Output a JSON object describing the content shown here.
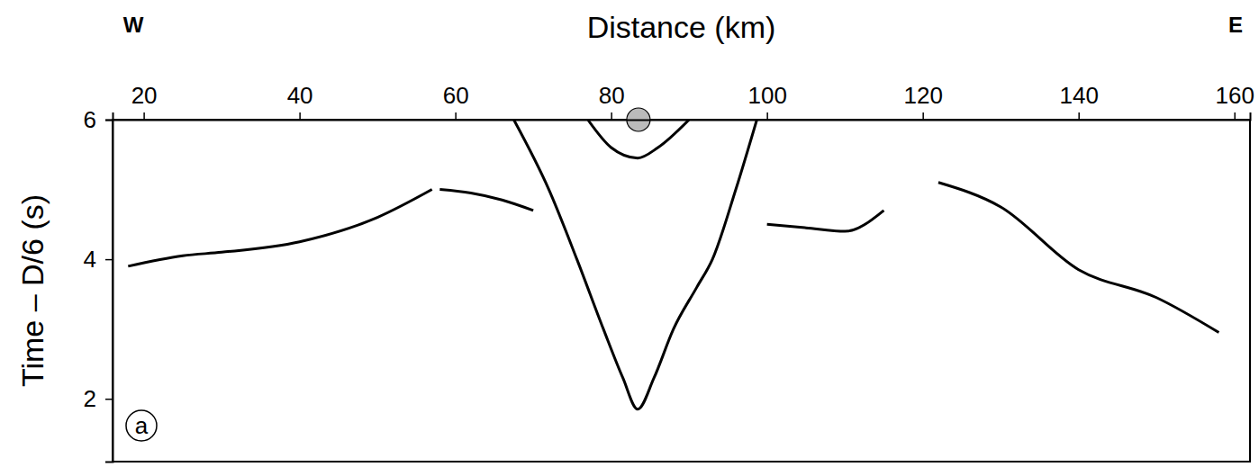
{
  "chart_data": {
    "type": "line",
    "title": "Distance (km)",
    "y_label": "Time – D/6 (s)",
    "direction_labels": [
      "W",
      "E"
    ],
    "panel_label": "a",
    "xlim": [
      16,
      162
    ],
    "xticks": [
      20,
      40,
      60,
      80,
      100,
      120,
      140,
      160
    ],
    "ylim": [
      1.1,
      6
    ],
    "yticks": [
      2,
      4,
      6
    ],
    "grid": false,
    "series": [
      {
        "color": "#000000",
        "x": [
          18,
          25,
          30,
          40,
          50,
          57
        ],
        "values": [
          3.9,
          4.05,
          4.1,
          4.25,
          4.6,
          5.0
        ]
      },
      {
        "color": "#000000",
        "x": [
          58,
          62,
          66,
          70
        ],
        "values": [
          5.0,
          4.95,
          4.85,
          4.7
        ]
      },
      {
        "color": "#000000",
        "x": [
          67.5,
          72,
          75.6,
          79,
          81.5,
          83.4,
          85.5,
          88,
          91,
          93,
          96,
          98.7
        ],
        "values": [
          6,
          5.0,
          4.0,
          3.0,
          2.3,
          1.85,
          2.3,
          3.0,
          3.6,
          4.0,
          5.0,
          6
        ]
      },
      {
        "color": "#000000",
        "x": [
          77,
          80,
          83.4,
          86,
          90
        ],
        "values": [
          6,
          5.6,
          5.45,
          5.6,
          6
        ]
      },
      {
        "color": "#000000",
        "x": [
          100,
          105,
          110,
          115
        ],
        "values": [
          4.5,
          4.45,
          4.4,
          4.7
        ]
      },
      {
        "color": "#000000",
        "x": [
          122,
          130,
          140,
          150,
          158
        ],
        "values": [
          5.1,
          4.75,
          3.85,
          3.45,
          2.95
        ]
      },
      {
        "type": "scatter",
        "marker": "circle",
        "color": "#bbbbbb",
        "x": [
          83.5
        ],
        "values": [
          6
        ]
      }
    ]
  }
}
